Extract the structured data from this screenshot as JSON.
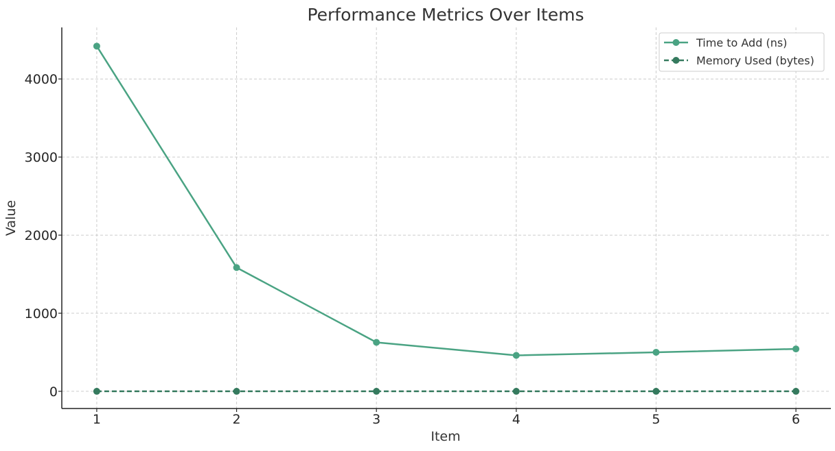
{
  "chart_data": {
    "type": "line",
    "title": "Performance Metrics Over Items",
    "xlabel": "Item",
    "ylabel": "Value",
    "x": [
      1,
      2,
      3,
      4,
      5,
      6
    ],
    "xlim": [
      0.75,
      6.25
    ],
    "ylim": [
      -220,
      4660
    ],
    "xticks": [
      1,
      2,
      3,
      4,
      5,
      6
    ],
    "yticks": [
      0,
      1000,
      2000,
      3000,
      4000
    ],
    "grid": true,
    "legend_position": "top-right",
    "series": [
      {
        "name": "Time to Add (ns)",
        "values": [
          4420,
          1585,
          627,
          460,
          500,
          543
        ],
        "color": "#4aa383",
        "line_style": "solid",
        "marker": "circle"
      },
      {
        "name": "Memory Used (bytes)",
        "values": [
          0,
          0,
          0,
          0,
          0,
          0
        ],
        "color": "#357a5e",
        "line_style": "dashed",
        "marker": "circle"
      }
    ]
  }
}
